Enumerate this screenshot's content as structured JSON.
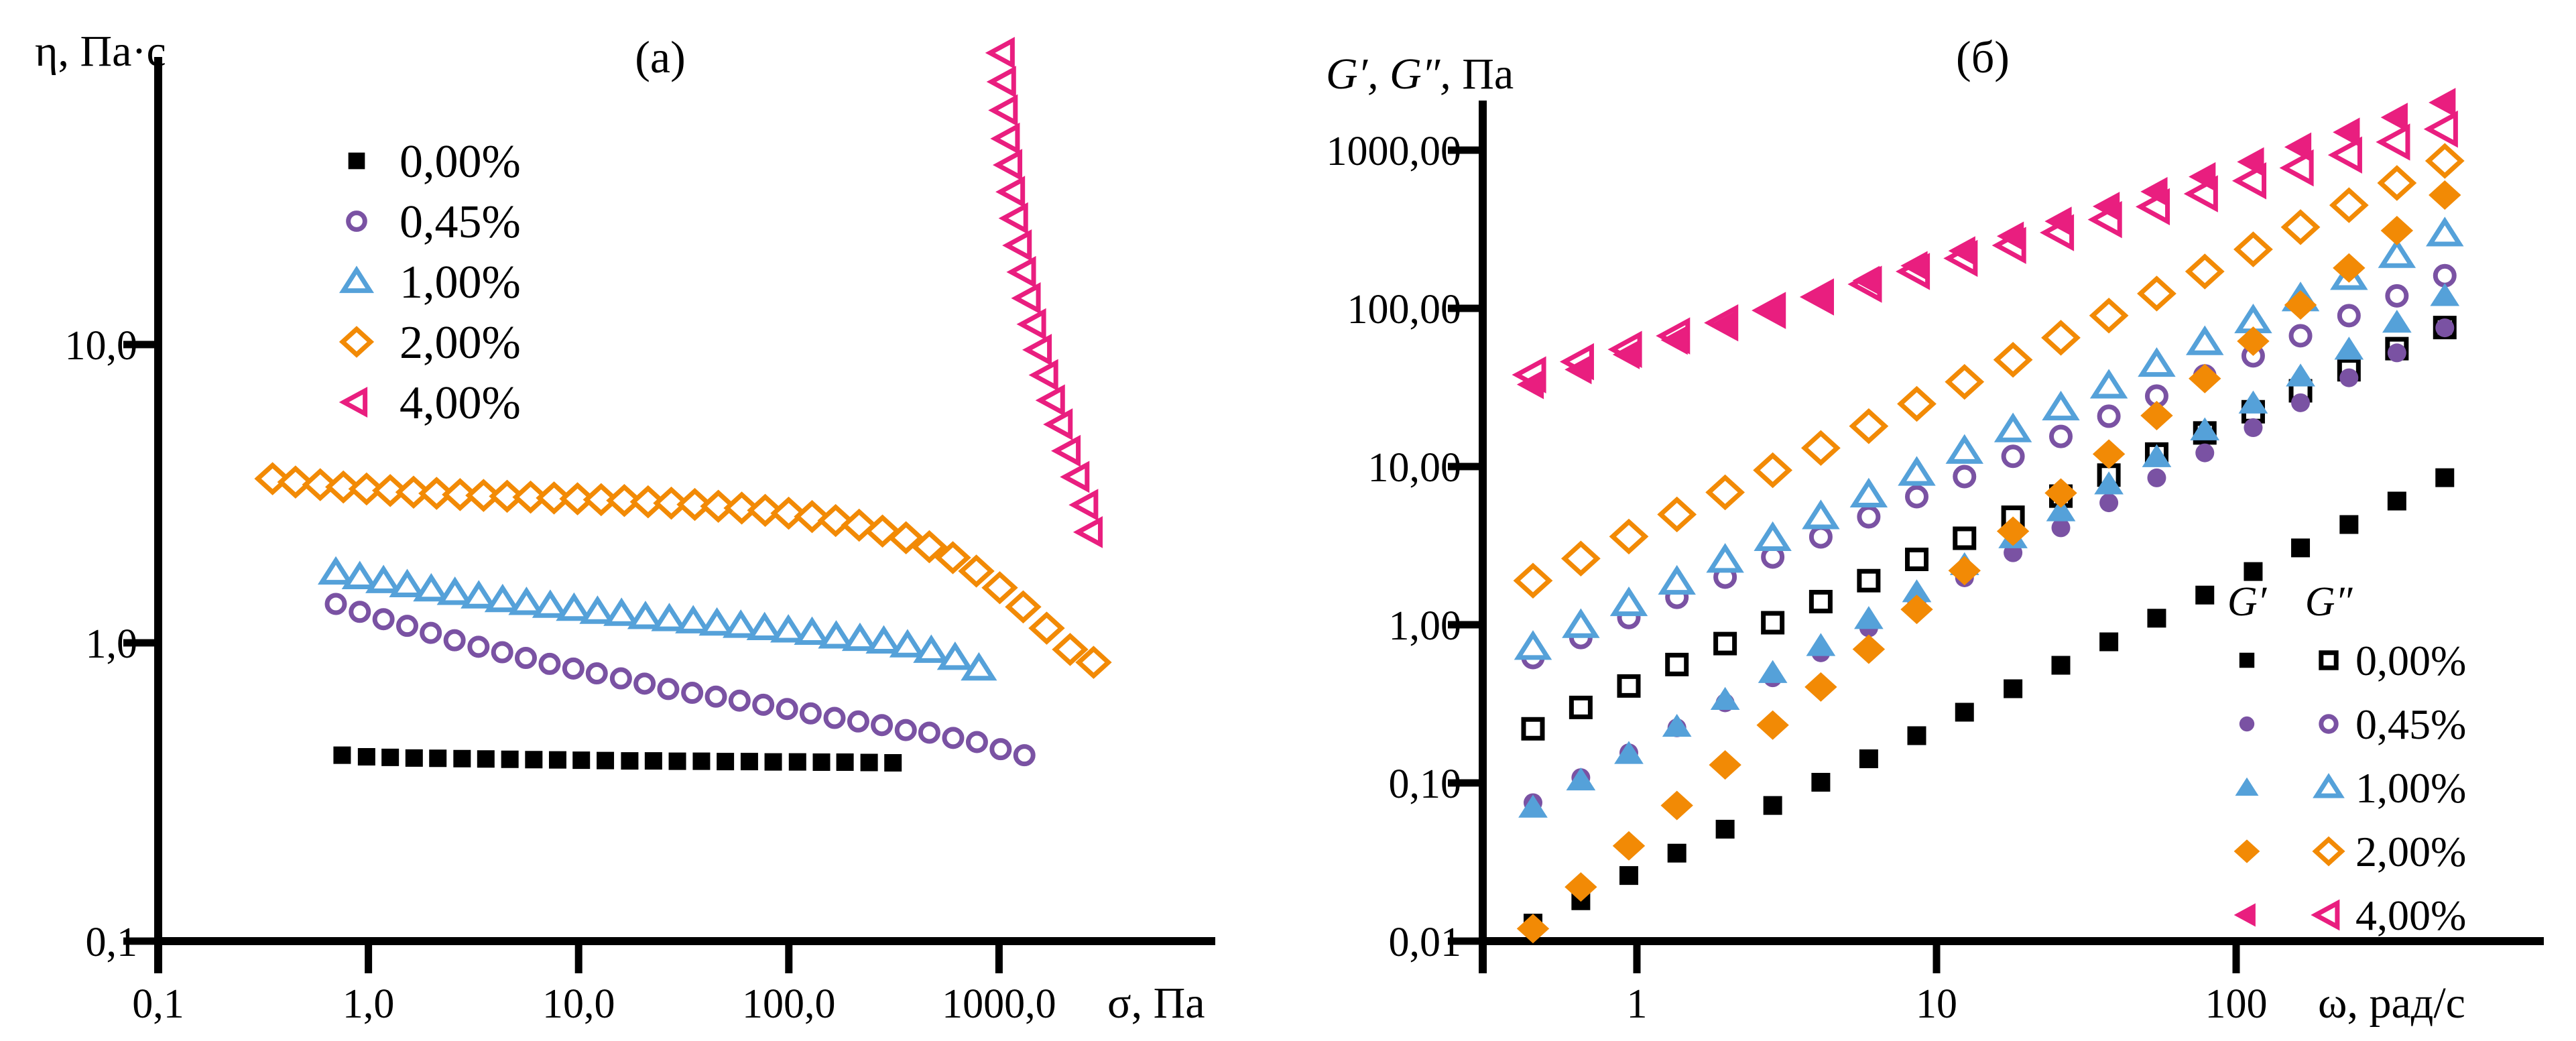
{
  "figure": {
    "background": "#ffffff",
    "colors": {
      "c000": "#000000",
      "c045": "#7A52A3",
      "c100": "#55A1D9",
      "c200": "#F28A05",
      "c400": "#E91E7F"
    }
  },
  "chart_data": [
    {
      "type": "scatter",
      "scale": "log-log",
      "panel_label": "(а)",
      "ylabel": "η, Па·с",
      "xlabel": "σ, Па",
      "xlim": [
        0.1,
        10500
      ],
      "ylim": [
        0.1,
        95
      ],
      "grid": false,
      "x_ticks": [
        {
          "v": 0.1,
          "label": "0,1"
        },
        {
          "v": 1,
          "label": "1,0"
        },
        {
          "v": 10,
          "label": "10,0"
        },
        {
          "v": 100,
          "label": "100,0"
        },
        {
          "v": 1000,
          "label": "1000,0"
        }
      ],
      "y_ticks": [
        {
          "v": 0.1,
          "label": "0,1"
        },
        {
          "v": 1,
          "label": "1,0"
        },
        {
          "v": 10,
          "label": "10,0"
        }
      ],
      "series": [
        {
          "name": "0,00%",
          "marker": "square",
          "filled": true,
          "color": "#000000",
          "sigma": [
            0.75,
            0.98,
            1.27,
            1.65,
            2.14,
            2.79,
            3.62,
            4.71,
            6.12,
            7.95,
            10.3,
            13.4,
            17.5,
            22.7,
            29.5,
            38.4,
            49.9,
            64.9,
            84.3,
            110,
            143,
            185,
            241,
            313
          ],
          "eta": [
            0.42,
            0.415,
            0.413,
            0.411,
            0.41,
            0.409,
            0.408,
            0.407,
            0.406,
            0.405,
            0.404,
            0.403,
            0.402,
            0.402,
            0.401,
            0.401,
            0.4,
            0.4,
            0.399,
            0.399,
            0.398,
            0.398,
            0.397,
            0.396
          ]
        },
        {
          "name": "0,45%",
          "marker": "circle",
          "filled": false,
          "color": "#7A52A3",
          "sigma": [
            0.7,
            0.91,
            1.18,
            1.53,
            1.98,
            2.57,
            3.34,
            4.33,
            5.61,
            7.28,
            9.44,
            12.2,
            15.9,
            20.6,
            26.7,
            34.7,
            45.0,
            58.3,
            75.6,
            98.1,
            127,
            165,
            214,
            277,
            360,
            466,
            605,
            785,
            1018,
            1320
          ],
          "eta": [
            1.35,
            1.27,
            1.2,
            1.14,
            1.08,
            1.02,
            0.97,
            0.93,
            0.89,
            0.85,
            0.82,
            0.79,
            0.76,
            0.73,
            0.7,
            0.68,
            0.66,
            0.64,
            0.62,
            0.6,
            0.58,
            0.56,
            0.545,
            0.53,
            0.51,
            0.5,
            0.48,
            0.465,
            0.44,
            0.42
          ]
        },
        {
          "name": "1,00%",
          "marker": "triangle",
          "filled": false,
          "color": "#55A1D9",
          "sigma": [
            0.7,
            0.91,
            1.18,
            1.53,
            1.99,
            2.58,
            3.35,
            4.35,
            5.65,
            7.33,
            9.51,
            12.3,
            16.0,
            20.8,
            27.0,
            35.1,
            45.5,
            59.1,
            76.7,
            99.5,
            129,
            168,
            218,
            283,
            367,
            476,
            618,
            802
          ],
          "eta": [
            1.72,
            1.66,
            1.61,
            1.56,
            1.51,
            1.47,
            1.43,
            1.39,
            1.36,
            1.33,
            1.3,
            1.27,
            1.25,
            1.22,
            1.2,
            1.18,
            1.16,
            1.14,
            1.12,
            1.1,
            1.08,
            1.05,
            1.03,
            1.01,
            0.98,
            0.94,
            0.89,
            0.82
          ]
        },
        {
          "name": "2,00%",
          "marker": "diamond",
          "filled": false,
          "color": "#F28A05",
          "sigma": [
            0.35,
            0.45,
            0.59,
            0.76,
            0.98,
            1.27,
            1.64,
            2.11,
            2.73,
            3.53,
            4.57,
            5.91,
            7.64,
            9.88,
            12.8,
            16.5,
            21.4,
            27.6,
            35.7,
            46.2,
            59.7,
            77.2,
            99.8,
            129,
            167,
            216,
            279,
            361,
            466,
            603,
            780,
            1008,
            1303,
            1685,
            2179,
            2817
          ],
          "eta": [
            3.55,
            3.46,
            3.39,
            3.33,
            3.28,
            3.24,
            3.2,
            3.17,
            3.14,
            3.12,
            3.1,
            3.08,
            3.06,
            3.04,
            3.02,
            3.0,
            2.97,
            2.94,
            2.91,
            2.87,
            2.83,
            2.78,
            2.72,
            2.65,
            2.57,
            2.48,
            2.37,
            2.25,
            2.1,
            1.93,
            1.74,
            1.53,
            1.32,
            1.12,
            0.95,
            0.86
          ]
        },
        {
          "name": "4,00%",
          "marker": "trileft",
          "filled": false,
          "color": "#E91E7F",
          "sigma": [
            1050,
            1065,
            1085,
            1110,
            1140,
            1175,
            1215,
            1265,
            1325,
            1395,
            1480,
            1575,
            1690,
            1820,
            1980,
            2160,
            2380,
            2620,
            2750
          ],
          "eta": [
            95,
            76,
            61,
            49,
            40,
            32.5,
            26.5,
            21.5,
            17.5,
            14.3,
            11.7,
            9.6,
            7.9,
            6.5,
            5.4,
            4.4,
            3.6,
            2.9,
            2.35
          ]
        }
      ],
      "legend": {
        "items": [
          {
            "label": "0,00%",
            "marker": "square",
            "filled": true,
            "color": "#000000"
          },
          {
            "label": "0,45%",
            "marker": "circle",
            "filled": false,
            "color": "#7A52A3"
          },
          {
            "label": "1,00%",
            "marker": "triangle",
            "filled": false,
            "color": "#55A1D9"
          },
          {
            "label": "2,00%",
            "marker": "diamond",
            "filled": false,
            "color": "#F28A05"
          },
          {
            "label": "4,00%",
            "marker": "trileft",
            "filled": false,
            "color": "#E91E7F"
          }
        ]
      }
    },
    {
      "type": "scatter",
      "scale": "log-log",
      "panel_label": "(б)",
      "ylabel_g": "G′, G″,",
      "ylabel_unit": " Па",
      "xlabel": "ω, рад/с",
      "xlim": [
        0.31,
        1040
      ],
      "ylim": [
        0.01,
        2100
      ],
      "grid": false,
      "x_ticks": [
        {
          "v": 1,
          "label": "1"
        },
        {
          "v": 10,
          "label": "10"
        },
        {
          "v": 100,
          "label": "100"
        }
      ],
      "y_ticks": [
        {
          "v": 0.01,
          "label": "0,01"
        },
        {
          "v": 0.1,
          "label": "0,10"
        },
        {
          "v": 1,
          "label": "1,00"
        },
        {
          "v": 10,
          "label": "10,00"
        },
        {
          "v": 100,
          "label": "100,00"
        },
        {
          "v": 1000,
          "label": "1000,00"
        }
      ],
      "omega": [
        0.45,
        0.65,
        0.94,
        1.36,
        1.97,
        2.84,
        4.11,
        5.94,
        8.59,
        12.4,
        18.0,
        26.0,
        37.6,
        54.3,
        78.6,
        114,
        164,
        238,
        344,
        497
      ],
      "series": [
        {
          "name": "G″ 0,00%",
          "group": "G″",
          "conc": "0,00%",
          "marker": "square",
          "filled": false,
          "color": "#000000",
          "values": [
            0.22,
            0.3,
            0.41,
            0.56,
            0.76,
            1.03,
            1.4,
            1.9,
            2.59,
            3.52,
            4.78,
            6.5,
            8.83,
            12.0,
            16.3,
            22.2,
            30.1,
            40.9,
            55.6,
            75.6
          ]
        },
        {
          "name": "G″ 0,45%",
          "group": "G″",
          "conc": "0,45%",
          "marker": "circle",
          "filled": false,
          "color": "#7A52A3",
          "values": [
            0.62,
            0.83,
            1.11,
            1.49,
            2.0,
            2.68,
            3.59,
            4.81,
            6.45,
            8.64,
            11.6,
            15.5,
            20.8,
            27.9,
            37.4,
            50.1,
            67.1,
            89.9,
            120,
            161
          ]
        },
        {
          "name": "G″ 1,00%",
          "group": "G″",
          "conc": "1,00%",
          "marker": "triangle",
          "filled": false,
          "color": "#55A1D9",
          "values": [
            0.72,
            0.99,
            1.36,
            1.86,
            2.56,
            3.51,
            4.82,
            6.62,
            9.08,
            12.5,
            17.1,
            23.5,
            32.3,
            44.3,
            60.8,
            83.5,
            115,
            157,
            216,
            296
          ]
        },
        {
          "name": "G″ 2,00%",
          "group": "G″",
          "conc": "2,00%",
          "marker": "diamond",
          "filled": false,
          "color": "#F28A05",
          "values": [
            1.9,
            2.62,
            3.61,
            4.98,
            6.87,
            9.48,
            13.1,
            18.0,
            24.9,
            34.3,
            47.3,
            65.2,
            90.0,
            124,
            171,
            236,
            326,
            449,
            620,
            855
          ]
        },
        {
          "name": "G′ 0,00%",
          "group": "G′",
          "conc": "0,00%",
          "marker": "square",
          "filled": true,
          "color": "#000000",
          "values": [
            0.013,
            0.018,
            0.026,
            0.036,
            0.051,
            0.072,
            0.101,
            0.142,
            0.199,
            0.28,
            0.394,
            0.554,
            0.78,
            1.1,
            1.54,
            2.17,
            3.06,
            4.3,
            6.05,
            8.5
          ]
        },
        {
          "name": "G′ 0,45%",
          "group": "G′",
          "conc": "0,45%",
          "marker": "circle",
          "filled": true,
          "color": "#7A52A3",
          "values": [
            0.075,
            0.108,
            0.155,
            0.223,
            0.321,
            0.462,
            0.665,
            0.956,
            1.38,
            1.98,
            2.85,
            4.1,
            5.9,
            8.48,
            12.2,
            17.6,
            25.3,
            36.4,
            52.3,
            75.3
          ]
        },
        {
          "name": "G′ 1,00%",
          "group": "G′",
          "conc": "1,00%",
          "marker": "triangle",
          "filled": true,
          "color": "#55A1D9",
          "values": [
            0.07,
            0.104,
            0.153,
            0.227,
            0.336,
            0.497,
            0.736,
            1.09,
            1.61,
            2.39,
            3.53,
            5.23,
            7.74,
            11.5,
            17.0,
            25.1,
            37.2,
            55.0,
            81.4,
            120
          ]
        },
        {
          "name": "G′ 2,00%",
          "group": "G′",
          "conc": "2,00%",
          "marker": "diamond",
          "filled": true,
          "color": "#F28A05",
          "values": [
            0.012,
            0.022,
            0.04,
            0.072,
            0.13,
            0.232,
            0.404,
            0.7,
            1.25,
            2.2,
            3.9,
            6.8,
            12.0,
            21.0,
            36.0,
            62.0,
            105,
            180,
            310,
            520
          ]
        },
        {
          "name": "G″ 4,00%",
          "group": "G″",
          "conc": "4,00%",
          "marker": "trileft",
          "filled": false,
          "color": "#E91E7F",
          "values": [
            38,
            46,
            55,
            67,
            81,
            97,
            118,
            142,
            171,
            207,
            250,
            301,
            364,
            439,
            530,
            640,
            772,
            932,
            1125,
            1358
          ]
        },
        {
          "name": "G′ 4,00%",
          "group": "G′",
          "conc": "4,00%",
          "marker": "trileft",
          "filled": true,
          "color": "#E91E7F",
          "values": [
            33,
            41,
            51,
            63,
            78,
            97,
            121,
            150,
            186,
            231,
            286,
            355,
            441,
            547,
            679,
            843,
            1046,
            1298,
            1611,
            2000
          ]
        }
      ],
      "legend": {
        "col1": "G′",
        "col2": "G″",
        "rows": [
          {
            "label": "0,00%",
            "marker": "square",
            "color": "#000000"
          },
          {
            "label": "0,45%",
            "marker": "circle",
            "color": "#7A52A3"
          },
          {
            "label": "1,00%",
            "marker": "triangle",
            "color": "#55A1D9"
          },
          {
            "label": "2,00%",
            "marker": "diamond",
            "color": "#F28A05"
          },
          {
            "label": "4,00%",
            "marker": "trileft",
            "color": "#E91E7F"
          }
        ]
      }
    }
  ]
}
